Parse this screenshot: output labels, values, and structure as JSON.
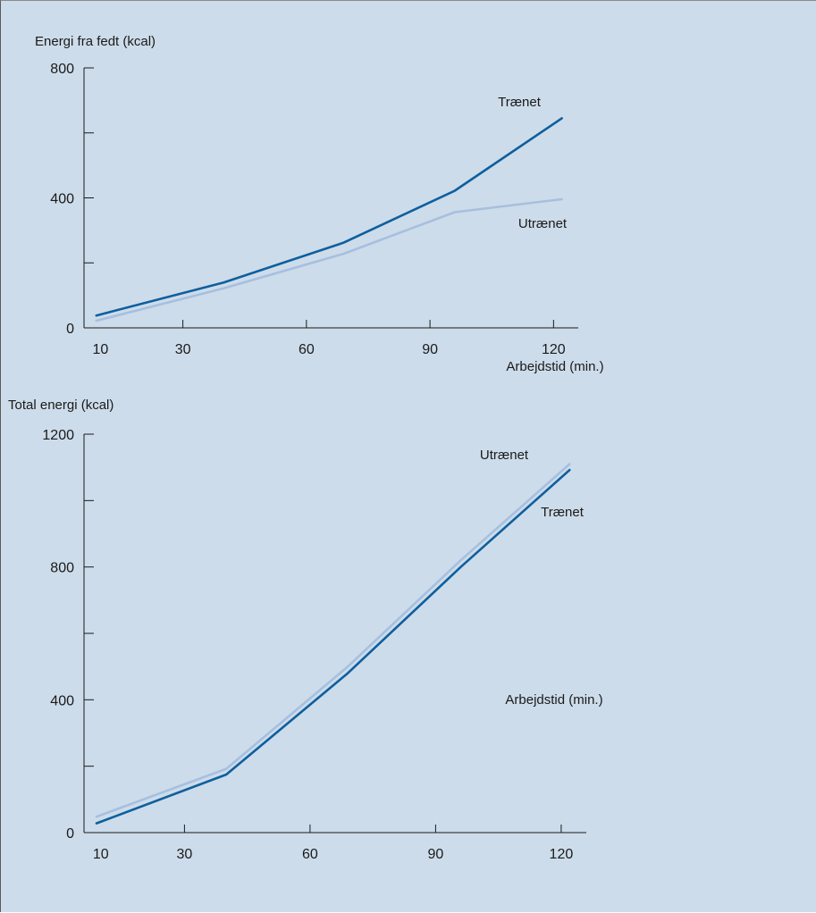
{
  "colors": {
    "background": "#cddcea",
    "trained": "#0e5f9e",
    "untrained": "#a7bfdf",
    "axis": "#1a1a1a"
  },
  "chart_data": [
    {
      "type": "line",
      "ylabel": "Energi fra fedt (kcal)",
      "xlabel": "Arbejdstid (min.)",
      "ylim": [
        0,
        800
      ],
      "y_ticks": [
        0,
        200,
        400,
        600,
        800
      ],
      "y_tick_labels": [
        "0",
        "",
        "400",
        "",
        "800"
      ],
      "xlim": [
        6,
        126
      ],
      "x_ticks": [
        10,
        30,
        60,
        90,
        120
      ],
      "x_tick_labels": [
        "10",
        "30",
        "60",
        "90",
        "120"
      ],
      "grid": false,
      "series": [
        {
          "name": "Trænet",
          "color": "trained",
          "x": [
            9,
            40,
            69,
            96,
            122
          ],
          "y": [
            38,
            140,
            262,
            422,
            645
          ]
        },
        {
          "name": "Utrænet",
          "color": "untrained",
          "x": [
            9,
            40,
            69,
            96,
            122
          ],
          "y": [
            22,
            122,
            228,
            356,
            396
          ]
        }
      ]
    },
    {
      "type": "line",
      "ylabel": "Total energi (kcal)",
      "xlabel": "Arbejdstid (min.)",
      "ylim": [
        0,
        1200
      ],
      "y_ticks": [
        0,
        200,
        400,
        600,
        800,
        1000,
        1200
      ],
      "y_tick_labels": [
        "0",
        "",
        "400",
        "",
        "800",
        "",
        "1200"
      ],
      "xlim": [
        6,
        126
      ],
      "x_ticks": [
        10,
        30,
        60,
        90,
        120
      ],
      "x_tick_labels": [
        "10",
        "30",
        "60",
        "90",
        "120"
      ],
      "grid": false,
      "series": [
        {
          "name": "Utrænet",
          "color": "untrained",
          "x": [
            9,
            40,
            69,
            96,
            122
          ],
          "y": [
            48,
            192,
            500,
            820,
            1110
          ]
        },
        {
          "name": "Trænet",
          "color": "trained",
          "x": [
            9,
            40,
            69,
            96,
            122
          ],
          "y": [
            28,
            175,
            480,
            800,
            1092
          ]
        }
      ]
    }
  ]
}
